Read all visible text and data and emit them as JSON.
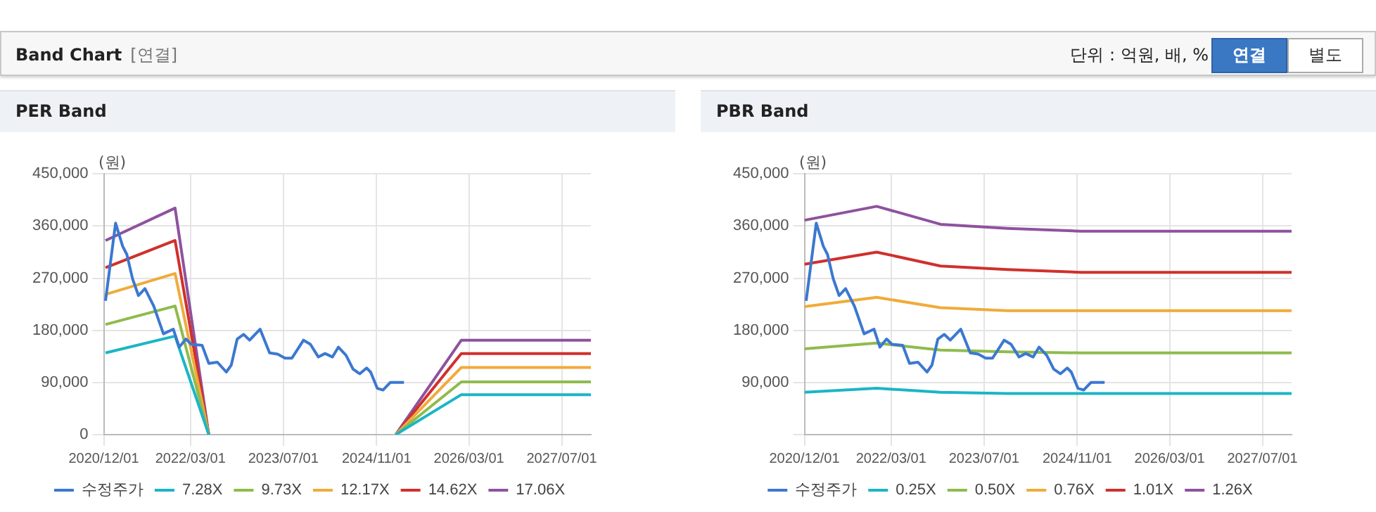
{
  "chart_data": [
    {
      "type": "other",
      "title": "Band Chart",
      "subtitle": "[연결]",
      "annotations": [
        "단위 : 억원, 배, %",
        "연결",
        "별도"
      ]
    },
    {
      "type": "line",
      "title": "PER Band",
      "ylabel": "(원)",
      "legend": "bottom",
      "grid": true,
      "xlim": [
        "2020-12-01",
        "2027-12-01"
      ],
      "xticks": [
        {
          "value": "2020-12-01",
          "label": "2020/12/01"
        },
        {
          "value": "2022-03-01",
          "label": "2022/03/01"
        },
        {
          "value": "2023-07-01",
          "label": "2023/07/01"
        },
        {
          "value": "2024-11-01",
          "label": "2024/11/01"
        },
        {
          "value": "2026-03-01",
          "label": "2026/03/01"
        },
        {
          "value": "2027-07-01",
          "label": "2027/07/01"
        }
      ],
      "ylim": [
        0,
        450000
      ],
      "yticks": [
        {
          "value": 0,
          "label": "0"
        },
        {
          "value": 90000,
          "label": "90,000"
        },
        {
          "value": 180000,
          "label": "180,000"
        },
        {
          "value": 270000,
          "label": "270,000"
        },
        {
          "value": 360000,
          "label": "360,000"
        },
        {
          "value": 450000,
          "label": "450,000"
        }
      ],
      "series": [
        {
          "name": "수정주가",
          "color": "#3b78d0",
          "x": [
            "2020-12-10",
            "2021-02-01",
            "2021-03-10",
            "2021-04-01",
            "2021-05-01",
            "2021-06-01",
            "2021-07-05",
            "2021-08-20",
            "2021-10-10",
            "2021-12-01",
            "2022-01-01",
            "2022-02-05",
            "2022-03-05",
            "2022-05-01",
            "2022-06-05",
            "2022-07-20",
            "2022-09-05",
            "2022-10-01",
            "2022-11-01",
            "2022-12-05",
            "2023-01-05",
            "2023-03-01",
            "2023-04-20",
            "2023-06-01",
            "2023-07-10",
            "2023-08-15",
            "2023-10-15",
            "2023-11-20",
            "2024-01-01",
            "2024-02-05",
            "2024-03-15",
            "2024-04-15",
            "2024-05-25",
            "2024-07-01",
            "2024-08-05",
            "2024-09-10",
            "2024-10-01",
            "2024-11-05",
            "2024-12-05",
            "2025-01-12",
            "2025-03-25"
          ],
          "values": [
            231000,
            365000,
            325000,
            311000,
            269000,
            240000,
            252000,
            222000,
            174000,
            182000,
            151000,
            165000,
            156000,
            154000,
            123000,
            125000,
            108000,
            120000,
            165000,
            173000,
            163000,
            182000,
            141000,
            139000,
            132000,
            132000,
            163000,
            156000,
            134000,
            140000,
            134000,
            151000,
            137000,
            113000,
            105000,
            115000,
            108000,
            80000,
            77000,
            90000,
            90000
          ]
        },
        {
          "name": "7.28X",
          "color": "#1bb5c6",
          "x": [
            "2020-12-10",
            "2021-12-10",
            "2022-06-05",
            "2023-07-01",
            "2025-02-10",
            "2026-01-20",
            "2027-12-01"
          ],
          "values": [
            141000,
            170000,
            0,
            null,
            0,
            69000,
            69000
          ]
        },
        {
          "name": "9.73X",
          "color": "#8fbb4c",
          "x": [
            "2020-12-10",
            "2021-12-10",
            "2022-06-05",
            "2023-07-01",
            "2025-02-10",
            "2026-01-20",
            "2027-12-01"
          ],
          "values": [
            190000,
            222000,
            0,
            null,
            0,
            91000,
            91000
          ]
        },
        {
          "name": "12.17X",
          "color": "#f0ab3a",
          "x": [
            "2020-12-10",
            "2021-12-10",
            "2022-06-05",
            "2023-07-01",
            "2025-02-10",
            "2026-01-20",
            "2027-12-01"
          ],
          "values": [
            242000,
            278000,
            0,
            null,
            0,
            116000,
            116000
          ]
        },
        {
          "name": "14.62X",
          "color": "#d0302c",
          "x": [
            "2020-12-10",
            "2021-12-10",
            "2022-06-05",
            "2023-07-01",
            "2025-02-10",
            "2026-01-20",
            "2027-12-01"
          ],
          "values": [
            288000,
            335000,
            0,
            null,
            0,
            140000,
            140000
          ]
        },
        {
          "name": "17.06X",
          "color": "#8e529e",
          "x": [
            "2020-12-10",
            "2021-12-10",
            "2022-06-05",
            "2023-07-01",
            "2025-02-10",
            "2026-01-20",
            "2027-12-01"
          ],
          "values": [
            335000,
            391000,
            0,
            null,
            0,
            163000,
            163000
          ]
        }
      ]
    },
    {
      "type": "line",
      "title": "PBR Band",
      "ylabel": "(원)",
      "legend": "bottom",
      "grid": true,
      "xlim": [
        "2020-12-01",
        "2027-12-01"
      ],
      "xticks": [
        {
          "value": "2020-12-01",
          "label": "2020/12/01"
        },
        {
          "value": "2022-03-01",
          "label": "2022/03/01"
        },
        {
          "value": "2023-07-01",
          "label": "2023/07/01"
        },
        {
          "value": "2024-11-01",
          "label": "2024/11/01"
        },
        {
          "value": "2026-03-01",
          "label": "2026/03/01"
        },
        {
          "value": "2027-07-01",
          "label": "2027/07/01"
        }
      ],
      "ylim": [
        0,
        450000
      ],
      "yticks": [
        {
          "value": 0,
          "label": null
        },
        {
          "value": 90000,
          "label": "90,000"
        },
        {
          "value": 180000,
          "label": "180,000"
        },
        {
          "value": 270000,
          "label": "270,000"
        },
        {
          "value": 360000,
          "label": "360,000"
        },
        {
          "value": 450000,
          "label": "450,000"
        }
      ],
      "series": [
        {
          "name": "수정주가",
          "color": "#3b78d0",
          "x": [
            "2020-12-10",
            "2021-02-01",
            "2021-03-10",
            "2021-04-01",
            "2021-05-01",
            "2021-06-01",
            "2021-07-05",
            "2021-08-20",
            "2021-10-10",
            "2021-12-01",
            "2022-01-01",
            "2022-02-05",
            "2022-03-05",
            "2022-05-01",
            "2022-06-05",
            "2022-07-20",
            "2022-09-05",
            "2022-10-01",
            "2022-11-01",
            "2022-12-05",
            "2023-01-05",
            "2023-03-01",
            "2023-04-20",
            "2023-06-01",
            "2023-07-10",
            "2023-08-15",
            "2023-10-15",
            "2023-11-20",
            "2024-01-01",
            "2024-02-05",
            "2024-03-15",
            "2024-04-15",
            "2024-05-25",
            "2024-07-01",
            "2024-08-05",
            "2024-09-10",
            "2024-10-01",
            "2024-11-05",
            "2024-12-05",
            "2025-01-12",
            "2025-03-25"
          ],
          "values": [
            231000,
            365000,
            325000,
            311000,
            269000,
            240000,
            252000,
            222000,
            174000,
            182000,
            151000,
            165000,
            156000,
            154000,
            123000,
            125000,
            108000,
            120000,
            165000,
            173000,
            163000,
            182000,
            141000,
            139000,
            132000,
            132000,
            163000,
            156000,
            134000,
            140000,
            134000,
            151000,
            137000,
            113000,
            105000,
            115000,
            108000,
            80000,
            77000,
            90000,
            90000
          ]
        },
        {
          "name": "0.25X",
          "color": "#1bb5c6",
          "x": [
            "2020-12-01",
            "2021-12-15",
            "2022-11-15",
            "2023-11-01",
            "2024-11-20",
            "2027-12-01"
          ],
          "values": [
            73000,
            80000,
            73000,
            71000,
            71000,
            71000
          ]
        },
        {
          "name": "0.50X",
          "color": "#8fbb4c",
          "x": [
            "2020-12-01",
            "2021-12-15",
            "2022-11-15",
            "2023-11-01",
            "2024-11-20",
            "2027-12-01"
          ],
          "values": [
            148000,
            158000,
            146000,
            143000,
            141000,
            141000
          ]
        },
        {
          "name": "0.76X",
          "color": "#f0ab3a",
          "x": [
            "2020-12-01",
            "2021-12-15",
            "2022-11-15",
            "2023-11-01",
            "2024-11-20",
            "2027-12-01"
          ],
          "values": [
            221000,
            237000,
            219000,
            214000,
            214000,
            214000
          ]
        },
        {
          "name": "1.01X",
          "color": "#d0302c",
          "x": [
            "2020-12-01",
            "2021-12-15",
            "2022-11-15",
            "2023-11-01",
            "2024-11-20",
            "2027-12-01"
          ],
          "values": [
            294000,
            315000,
            291000,
            285000,
            280000,
            280000
          ]
        },
        {
          "name": "1.26X",
          "color": "#8e529e",
          "x": [
            "2020-12-01",
            "2021-12-15",
            "2022-11-15",
            "2023-11-01",
            "2024-11-20",
            "2027-12-01"
          ],
          "values": [
            370000,
            394000,
            363000,
            356000,
            351000,
            351000
          ]
        }
      ]
    }
  ]
}
